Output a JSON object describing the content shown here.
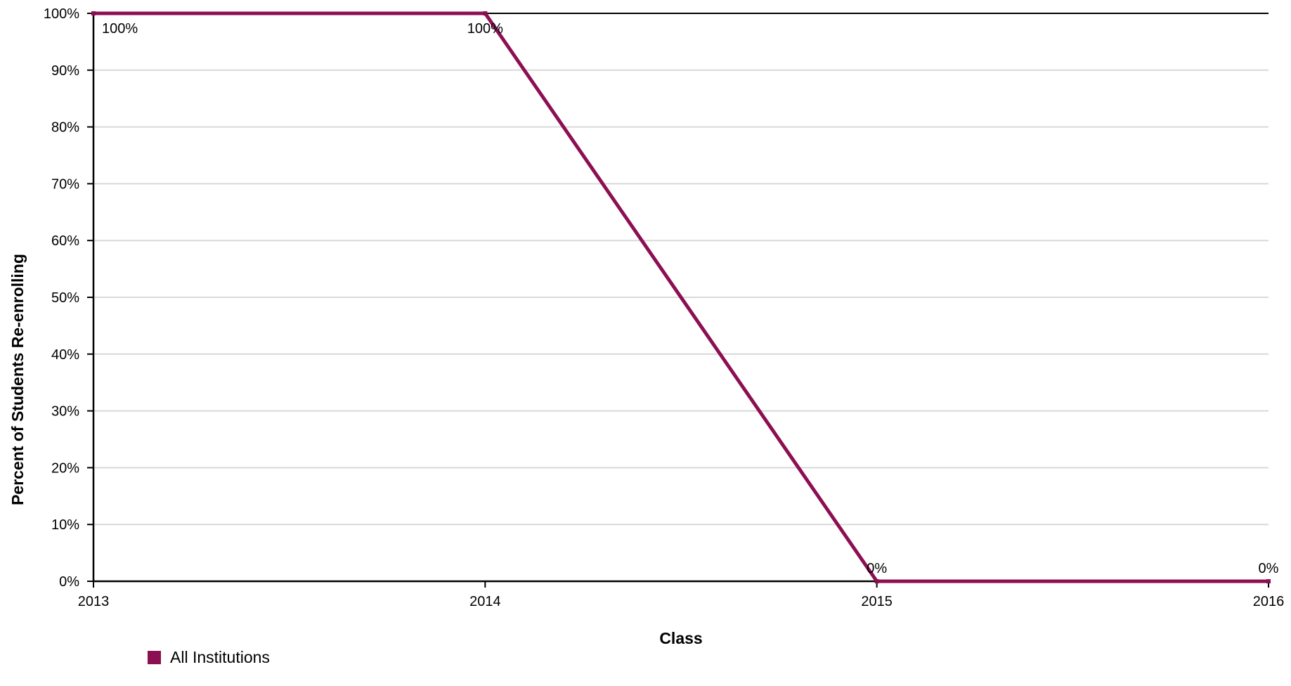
{
  "colors": {
    "series": "#8c0f52",
    "axis": "#000000",
    "grid": "#d9d9d9"
  },
  "chart_data": {
    "type": "line",
    "title": "",
    "xlabel": "Class",
    "ylabel": "Percent of Students Re-enrolling",
    "x": [
      2013,
      2014,
      2015,
      2016
    ],
    "x_tick_labels": [
      "2013",
      "2014",
      "2015",
      "2016"
    ],
    "xlim": [
      2013,
      2016
    ],
    "ylim": [
      0,
      100
    ],
    "y_ticks": [
      0,
      10,
      20,
      30,
      40,
      50,
      60,
      70,
      80,
      90,
      100
    ],
    "y_tick_labels": [
      "0%",
      "10%",
      "20%",
      "30%",
      "40%",
      "50%",
      "60%",
      "70%",
      "80%",
      "90%",
      "100%"
    ],
    "grid": true,
    "legend_position": "bottom-left",
    "series": [
      {
        "name": "All Institutions",
        "color": "#8c0f52",
        "values": [
          100,
          100,
          0,
          0
        ],
        "data_labels": [
          "100%",
          "100%",
          "0%",
          "0%"
        ]
      }
    ]
  }
}
